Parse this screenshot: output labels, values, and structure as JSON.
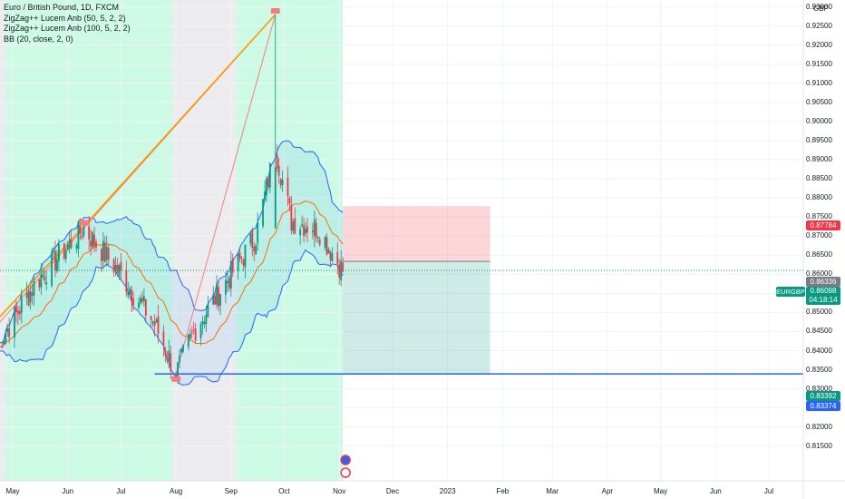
{
  "legend": {
    "title": "Euro / British Pound, 1D, FXCM",
    "ind1": "ZigZag++ Lucem Anb (50, 5, 2, 2)",
    "ind2": "ZigZag++ Lucem Anb (100, 5, 2, 2)",
    "ind3": "BB (20, close, 2, 0)"
  },
  "currency": "GBP",
  "symbol": "EURGBP",
  "price_axis": [
    "0.93000",
    "0.92500",
    "0.92000",
    "0.91500",
    "0.91000",
    "0.90500",
    "0.90000",
    "0.89500",
    "0.89000",
    "0.88500",
    "0.88000",
    "0.87500",
    "0.87000",
    "0.86500",
    "0.86000",
    "0.85500",
    "0.85000",
    "0.84500",
    "0.84000",
    "0.83500",
    "0.83000",
    "0.82500",
    "0.82000",
    "0.81500"
  ],
  "time_axis": [
    "May",
    "Jun",
    "Jul",
    "Aug",
    "Sep",
    "Oct",
    "Nov",
    "Dec",
    "2023",
    "Feb",
    "Mar",
    "Apr",
    "May",
    "Jun",
    "Jul"
  ],
  "badges": {
    "stop": "0.87784",
    "entry": "0.86336",
    "last": "0.86098",
    "countdown": "04:18:14",
    "level": "0.83392",
    "target": "0.83374"
  },
  "colors": {
    "up": "#089981",
    "down": "#f23645",
    "stop": "#f23645",
    "entry": "#787b86",
    "level": "#2962ff",
    "bb": "#2962ff",
    "zigzag_orange": "#ff9800"
  },
  "chart_data": {
    "type": "candlestick",
    "title": "Euro / British Pound, 1D, FXCM",
    "ylabel": "GBP",
    "ylim": [
      0.8115,
      0.9345
    ],
    "x_ticks": [
      "May",
      "Jun",
      "Jul",
      "Aug",
      "Sep",
      "Oct",
      "Nov",
      "Dec",
      "2023",
      "Feb",
      "Mar",
      "Apr",
      "May",
      "Jun",
      "Jul"
    ],
    "anchors": [
      [
        "2022-04-21",
        0.8405
      ],
      [
        "2022-05-15",
        0.8585
      ],
      [
        "2022-06-10",
        0.872
      ],
      [
        "2022-07-01",
        0.86
      ],
      [
        "2022-07-20",
        0.847
      ],
      [
        "2022-08-01",
        0.834
      ],
      [
        "2022-08-12",
        0.846
      ],
      [
        "2022-09-01",
        0.86
      ],
      [
        "2022-09-15",
        0.87
      ],
      [
        "2022-09-26",
        0.893
      ],
      [
        "2022-10-05",
        0.874
      ],
      [
        "2022-10-20",
        0.872
      ],
      [
        "2022-11-03",
        0.861
      ]
    ],
    "zigzag_50": [
      [
        "2022-04-20",
        0.8455
      ],
      [
        "2022-06-10",
        0.872
      ],
      [
        "2022-09-26",
        0.928
      ],
      [
        "2022-08-01",
        0.834
      ]
    ],
    "zigzag_100": [
      [
        "2022-04-20",
        0.847
      ],
      [
        "2022-06-10",
        0.8725
      ],
      [
        "2022-09-26",
        0.928
      ]
    ],
    "bollinger": {
      "length": 20,
      "mult": 2
    },
    "position": {
      "entry": 0.86336,
      "stop": 0.87784,
      "target": 0.83374,
      "start": "2022-11-03",
      "end": "2023-01-25"
    },
    "horizontal_level": 0.83392,
    "last_price": 0.86098,
    "shaded_ranges": [
      [
        "2022-04-20",
        "2022-04-27",
        "gray"
      ],
      [
        "2022-04-27",
        "2022-07-30",
        "green"
      ],
      [
        "2022-07-30",
        "2022-09-04",
        "gray"
      ],
      [
        "2022-09-04",
        "2022-11-03",
        "green"
      ]
    ],
    "grid": true
  }
}
